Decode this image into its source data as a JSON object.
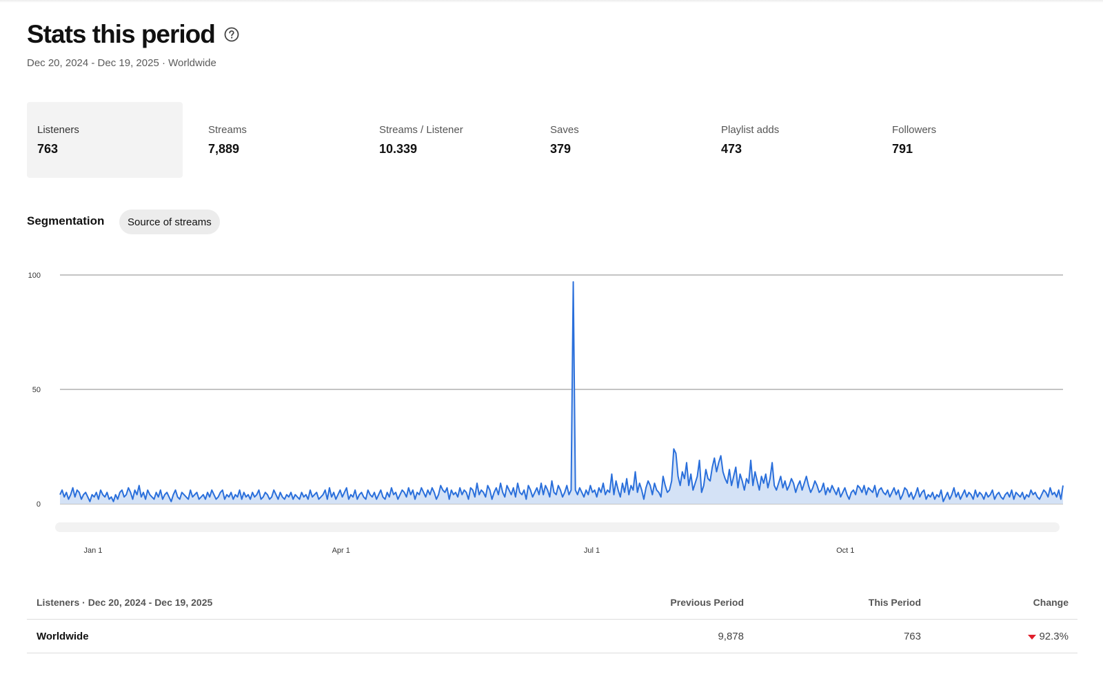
{
  "header": {
    "title": "Stats this period",
    "subtitle": "Dec 20, 2024 - Dec 19, 2025 · Worldwide",
    "help_icon": "question-circle-icon"
  },
  "stats": [
    {
      "label": "Listeners",
      "value": "763",
      "active": true
    },
    {
      "label": "Streams",
      "value": "7,889",
      "active": false
    },
    {
      "label": "Streams / Listener",
      "value": "10.339",
      "active": false
    },
    {
      "label": "Saves",
      "value": "379",
      "active": false
    },
    {
      "label": "Playlist adds",
      "value": "473",
      "active": false
    },
    {
      "label": "Followers",
      "value": "791",
      "active": false
    }
  ],
  "segmentation": {
    "label": "Segmentation",
    "button": "Source of streams"
  },
  "colors": {
    "line": "#2a6fdb",
    "fill": "#d4e2f6",
    "grid": "#8a8a8a",
    "decline": "#e01e2b"
  },
  "chart_data": {
    "type": "area",
    "series": [
      {
        "values": [
          4,
          6,
          3,
          5,
          2,
          4,
          7,
          3,
          6,
          5,
          2,
          4,
          5,
          3,
          1,
          4,
          3,
          5,
          2,
          6,
          4,
          3,
          5,
          2,
          3,
          1,
          4,
          2,
          5,
          6,
          3,
          4,
          7,
          5,
          2,
          6,
          4,
          8,
          3,
          5,
          2,
          6,
          4,
          3,
          2,
          5,
          3,
          6,
          2,
          4,
          5,
          3,
          1,
          4,
          6,
          3,
          2,
          5,
          4,
          3,
          2,
          6,
          3,
          4,
          5,
          2,
          3,
          4,
          2,
          5,
          3,
          6,
          4,
          2,
          3,
          5,
          6,
          2,
          4,
          3,
          5,
          2,
          4,
          3,
          6,
          2,
          5,
          3,
          4,
          2,
          5,
          3,
          4,
          6,
          2,
          3,
          5,
          4,
          2,
          3,
          6,
          4,
          2,
          5,
          3,
          2,
          4,
          3,
          5,
          2,
          4,
          3,
          2,
          5,
          3,
          4,
          2,
          6,
          3,
          4,
          5,
          2,
          3,
          4,
          6,
          2,
          7,
          3,
          5,
          2,
          4,
          6,
          3,
          5,
          7,
          2,
          4,
          3,
          6,
          2,
          4,
          5,
          3,
          2,
          6,
          4,
          3,
          5,
          2,
          4,
          6,
          3,
          2,
          5,
          3,
          7,
          4,
          5,
          2,
          4,
          6,
          5,
          3,
          7,
          4,
          6,
          2,
          5,
          4,
          7,
          5,
          3,
          6,
          4,
          7,
          5,
          2,
          4,
          8,
          6,
          5,
          7,
          2,
          6,
          4,
          5,
          3,
          7,
          4,
          6,
          5,
          2,
          7,
          6,
          3,
          9,
          4,
          6,
          5,
          3,
          8,
          6,
          2,
          5,
          7,
          4,
          9,
          5,
          3,
          8,
          6,
          4,
          7,
          3,
          9,
          5,
          4,
          6,
          2,
          8,
          6,
          3,
          5,
          7,
          4,
          9,
          4,
          8,
          6,
          3,
          10,
          5,
          4,
          8,
          6,
          3,
          5,
          8,
          4,
          6,
          97,
          6,
          4,
          7,
          5,
          3,
          6,
          4,
          8,
          5,
          6,
          3,
          7,
          5,
          9,
          4,
          6,
          5,
          13,
          4,
          10,
          6,
          3,
          9,
          5,
          11,
          4,
          8,
          6,
          14,
          5,
          9,
          6,
          2,
          7,
          10,
          8,
          4,
          9,
          6,
          5,
          3,
          12,
          8,
          5,
          6,
          10,
          24,
          22,
          12,
          8,
          14,
          11,
          18,
          8,
          13,
          6,
          9,
          12,
          19,
          5,
          8,
          15,
          11,
          10,
          16,
          20,
          14,
          18,
          21,
          14,
          11,
          9,
          15,
          8,
          12,
          16,
          7,
          13,
          10,
          6,
          11,
          9,
          19,
          8,
          14,
          10,
          6,
          12,
          9,
          13,
          7,
          11,
          18,
          8,
          6,
          9,
          12,
          7,
          10,
          6,
          8,
          11,
          9,
          5,
          8,
          10,
          6,
          9,
          12,
          8,
          5,
          7,
          10,
          8,
          5,
          6,
          9,
          4,
          7,
          5,
          8,
          6,
          4,
          7,
          3,
          5,
          7,
          4,
          2,
          5,
          6,
          4,
          8,
          7,
          5,
          8,
          4,
          7,
          6,
          5,
          8,
          3,
          6,
          7,
          5,
          4,
          6,
          3,
          5,
          7,
          4,
          6,
          2,
          4,
          7,
          6,
          3,
          5,
          2,
          4,
          7,
          3,
          5,
          6,
          2,
          4,
          3,
          5,
          2,
          4,
          3,
          6,
          1,
          3,
          5,
          2,
          4,
          7,
          3,
          5,
          2,
          4,
          6,
          3,
          5,
          4,
          2,
          6,
          3,
          5,
          4,
          2,
          5,
          3,
          4,
          6,
          2,
          4,
          5,
          3,
          2,
          4,
          5,
          3,
          6,
          2,
          5,
          4,
          3,
          5,
          2,
          4,
          3,
          6,
          4,
          5,
          3,
          2,
          4,
          6,
          5,
          3,
          7,
          4,
          5,
          3,
          6,
          2,
          8
        ]
      }
    ],
    "x_ticks": [
      "Jan 1",
      "Apr 1",
      "Jul 1",
      "Oct 1"
    ],
    "y_ticks": [
      "0",
      "50",
      "100"
    ],
    "ylim": [
      0,
      100
    ],
    "x_range": [
      "Dec 20, 2024",
      "Dec 19, 2025"
    ],
    "grid": true
  },
  "table": {
    "headers": {
      "metric": "Listeners · Dec 20, 2024 - Dec 19, 2025",
      "previous": "Previous Period",
      "this": "This Period",
      "change": "Change"
    },
    "row": {
      "region": "Worldwide",
      "previous": "9,878",
      "this": "763",
      "change": "92.3%",
      "direction": "down"
    }
  }
}
